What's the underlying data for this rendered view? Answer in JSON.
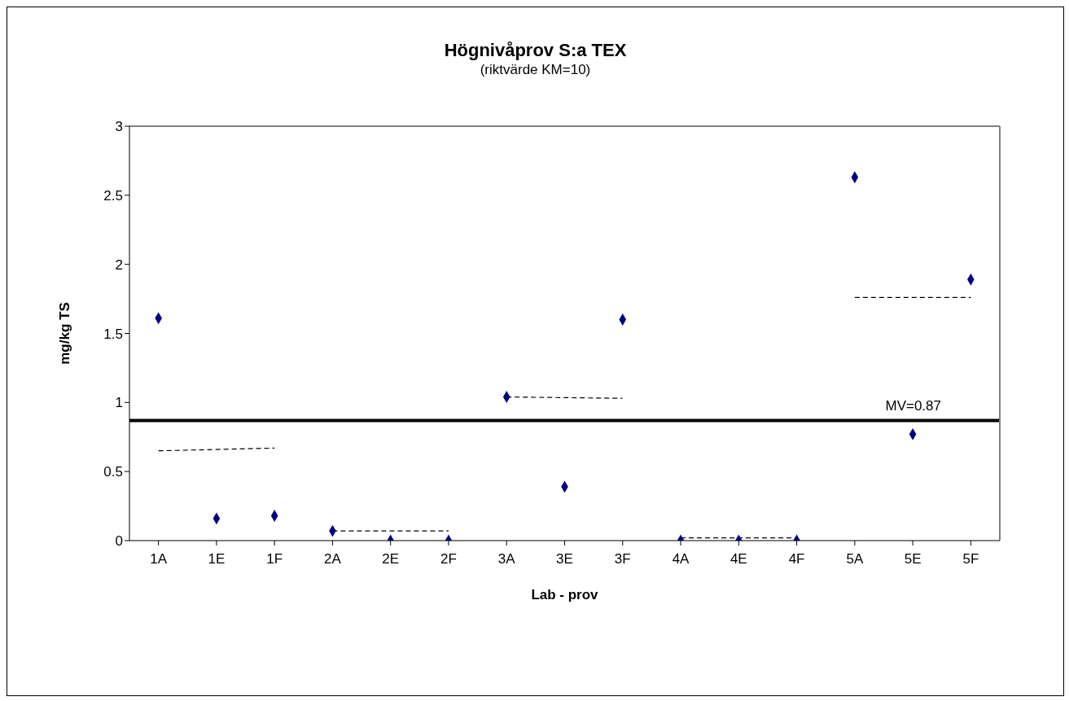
{
  "chart_data": {
    "type": "scatter",
    "title": "Högnivåprov S:a TEX",
    "subtitle": "(riktvärde KM=10)",
    "xlabel": "Lab - prov",
    "ylabel": "mg/kg TS",
    "categories": [
      "1A",
      "1E",
      "1F",
      "2A",
      "2E",
      "2F",
      "3A",
      "3E",
      "3F",
      "4A",
      "4E",
      "4F",
      "5A",
      "5E",
      "5F"
    ],
    "series": [
      {
        "color": "#000080",
        "marker": "diamond",
        "values": [
          1.61,
          0.16,
          0.18,
          0.07,
          0,
          0,
          1.04,
          0.39,
          1.6,
          0,
          0,
          0,
          2.63,
          0.77,
          1.89
        ]
      },
      {
        "type": "line",
        "color": "#000000",
        "line_style": "dashed",
        "marker": "none",
        "x": [
          "1A",
          "1F"
        ],
        "values": [
          0.65,
          0.67
        ]
      },
      {
        "type": "line",
        "color": "#000000",
        "line_style": "dashed",
        "marker": "none",
        "x": [
          "2A",
          "2F"
        ],
        "values": [
          0.07,
          0.07
        ]
      },
      {
        "type": "line",
        "color": "#000000",
        "line_style": "dashed",
        "marker": "none",
        "x": [
          "3A",
          "3F"
        ],
        "values": [
          1.04,
          1.03
        ]
      },
      {
        "type": "line",
        "color": "#000000",
        "line_style": "dashed",
        "marker": "none",
        "x": [
          "4A",
          "4F"
        ],
        "values": [
          0.02,
          0.02
        ]
      },
      {
        "type": "line",
        "color": "#000000",
        "line_style": "dashed",
        "marker": "none",
        "x": [
          "5A",
          "5F"
        ],
        "values": [
          1.76,
          1.76
        ]
      }
    ],
    "ylim": [
      0,
      3
    ],
    "yticks": [
      0,
      0.5,
      1,
      1.5,
      2,
      2.5,
      3
    ],
    "ref_lines": [
      {
        "axis": "y",
        "value": 0.87,
        "label": "MV=0.87",
        "color": "#000000"
      }
    ],
    "grid": false,
    "legend": false
  }
}
